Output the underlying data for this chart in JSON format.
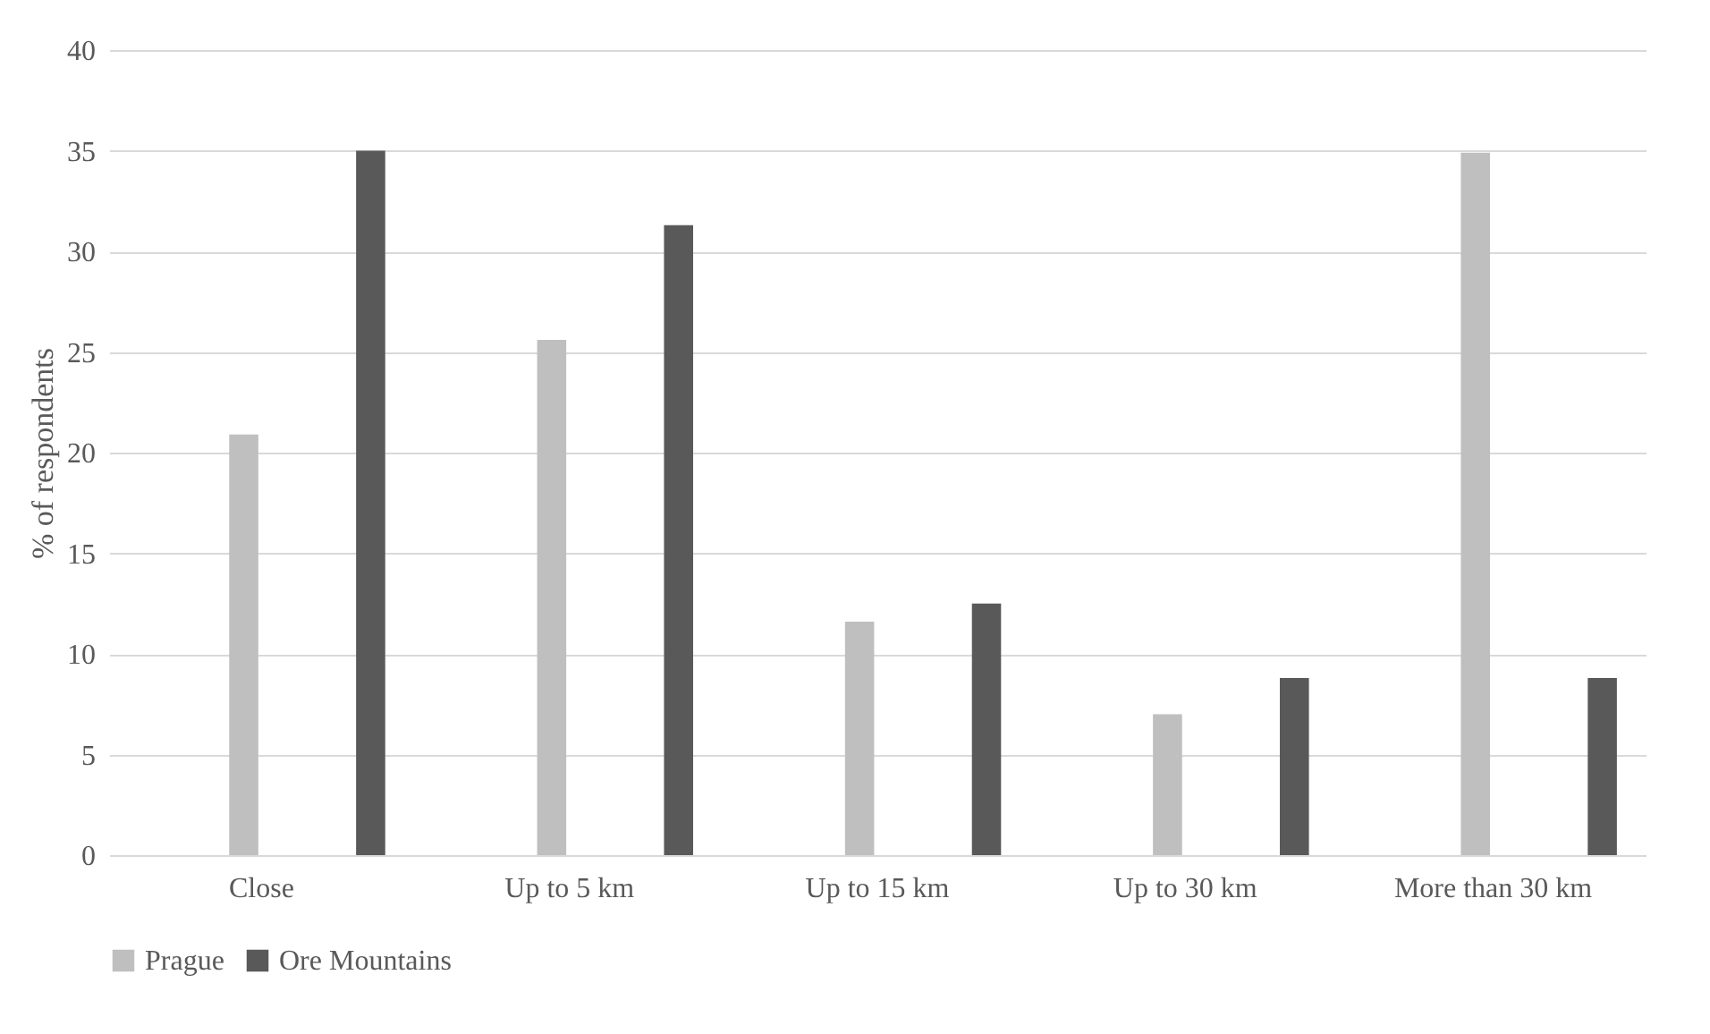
{
  "chart_data": {
    "type": "bar",
    "ylabel": "% of respondents",
    "categories": [
      "Close",
      "Up to 5 km",
      "Up to 15 km",
      "Up to 30 km",
      "More than 30 km"
    ],
    "series": [
      {
        "name": "Prague",
        "color": "#bfbfbf",
        "values": [
          20.9,
          25.6,
          11.6,
          7.0,
          34.9
        ]
      },
      {
        "name": "Ore Mountains",
        "color": "#595959",
        "values": [
          35.0,
          31.3,
          12.5,
          8.8,
          8.8
        ]
      }
    ],
    "ylim": [
      0,
      40
    ],
    "yticks": [
      0,
      5,
      10,
      15,
      20,
      25,
      30,
      35,
      40
    ],
    "grid": "y",
    "legend": "bottom"
  }
}
